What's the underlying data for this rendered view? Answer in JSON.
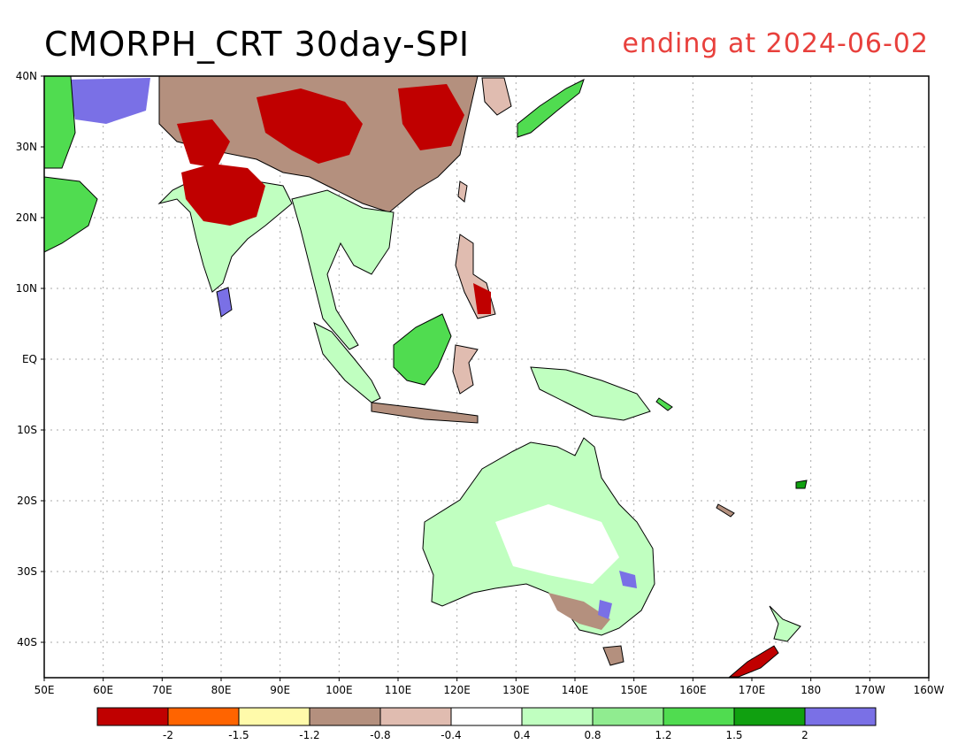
{
  "title": "CMORPH_CRT 30day-SPI",
  "subtitle": "ending at 2024-06-02",
  "map": {
    "lon_range": [
      50,
      200
    ],
    "lat_range": [
      -45,
      40
    ],
    "lon_ticks": [
      "50E",
      "60E",
      "70E",
      "80E",
      "90E",
      "100E",
      "110E",
      "120E",
      "130E",
      "140E",
      "150E",
      "160E",
      "170E",
      "180",
      "170W",
      "160W"
    ],
    "lat_ticks": [
      "40N",
      "30N",
      "20N",
      "10N",
      "EQ",
      "10S",
      "20S",
      "30S",
      "40S"
    ],
    "lat_tick_values": [
      40,
      30,
      20,
      10,
      0,
      -10,
      -20,
      -30,
      -40
    ]
  },
  "legend": {
    "colors": [
      "#c00000",
      "#ff6400",
      "#fffaaa",
      "#b4907e",
      "#e0bcb0",
      "#ffffff",
      "#c0ffc0",
      "#90ec90",
      "#50dc50",
      "#10a010",
      "#7a70e6"
    ],
    "labels": [
      "-2",
      "-1.5",
      "-1.2",
      "-0.8",
      "-0.4",
      "0.4",
      "0.8",
      "1.2",
      "1.5",
      "2"
    ]
  },
  "colors": {
    "subtitle": "#e8403c",
    "grid": "#aaaaaa"
  }
}
